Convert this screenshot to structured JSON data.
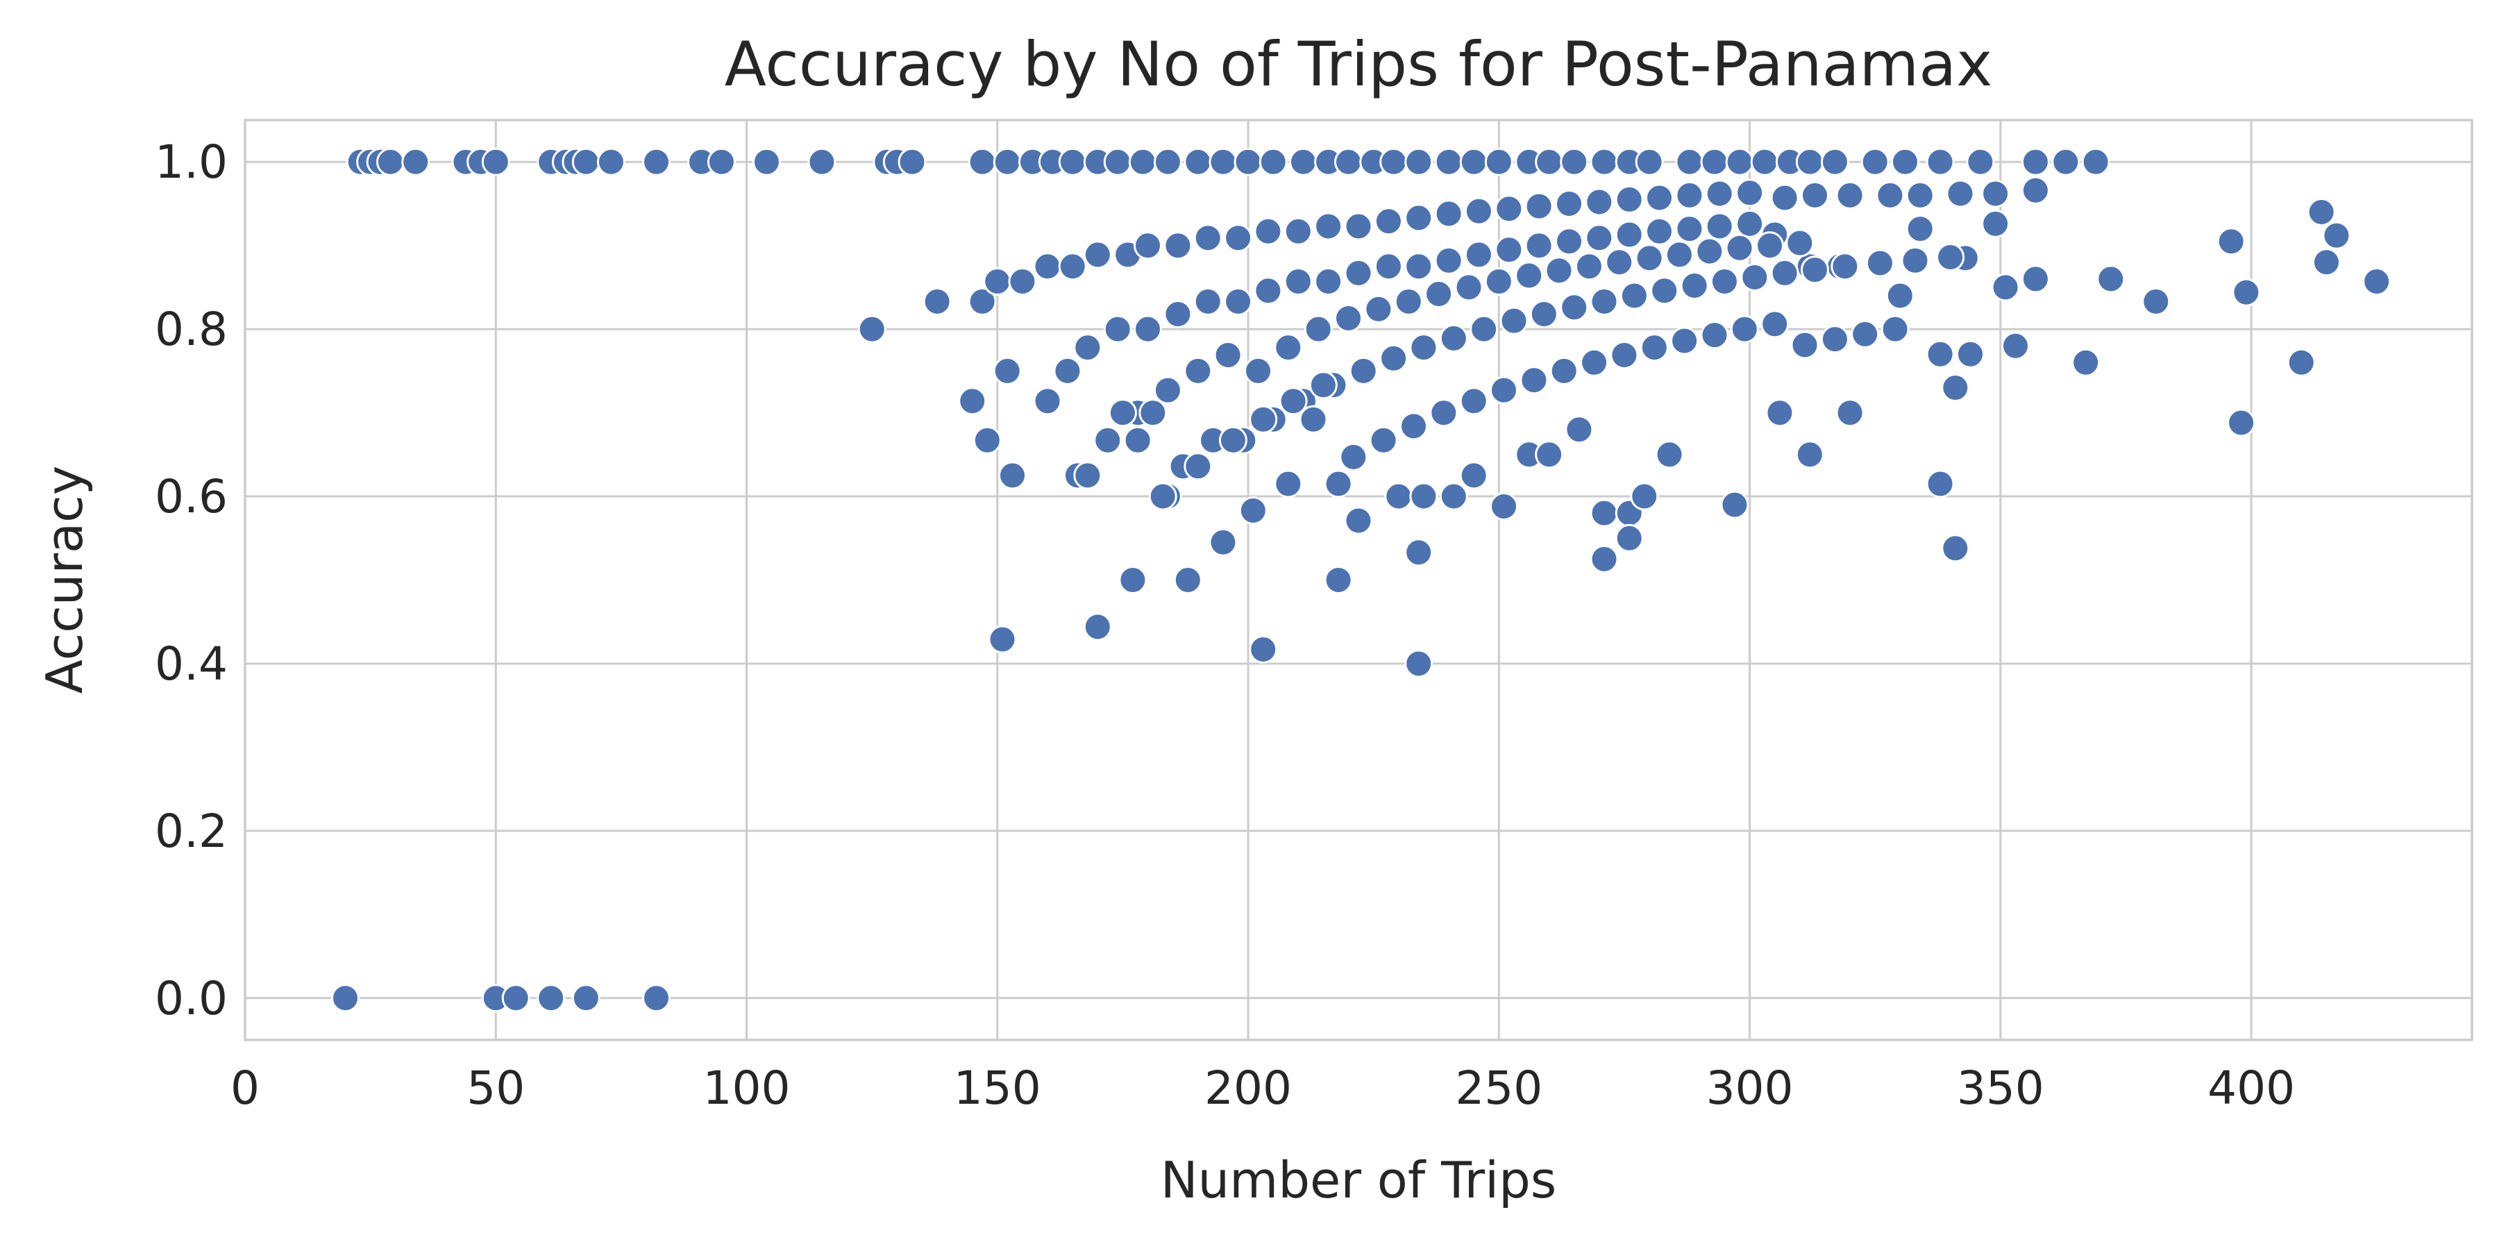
{
  "chart_data": {
    "type": "scatter",
    "title": "Accuracy by No of Trips for Post-Panamax",
    "xlabel": "Number of Trips",
    "ylabel": "Accuracy",
    "xlim": [
      0,
      444
    ],
    "ylim": [
      -0.05,
      1.05
    ],
    "xticks": [
      0,
      50,
      100,
      150,
      200,
      250,
      300,
      350,
      400
    ],
    "yticks": [
      0.0,
      0.2,
      0.4,
      0.6,
      0.8,
      1.0
    ],
    "xtick_labels": [
      "0",
      "50",
      "100",
      "150",
      "200",
      "250",
      "300",
      "350",
      "400"
    ],
    "ytick_labels": [
      "0.0",
      "0.2",
      "0.4",
      "0.6",
      "0.8",
      "1.0"
    ],
    "grid": true,
    "color": "#4c72b0",
    "points": [
      [
        23,
        1.0
      ],
      [
        25,
        1.0
      ],
      [
        27,
        1.0
      ],
      [
        29,
        1.0
      ],
      [
        34,
        1.0
      ],
      [
        44,
        1.0
      ],
      [
        47,
        1.0
      ],
      [
        50,
        1.0
      ],
      [
        61,
        1.0
      ],
      [
        64,
        1.0
      ],
      [
        66,
        1.0
      ],
      [
        68,
        1.0
      ],
      [
        73,
        1.0
      ],
      [
        82,
        1.0
      ],
      [
        91,
        1.0
      ],
      [
        95,
        1.0
      ],
      [
        104,
        1.0
      ],
      [
        115,
        1.0
      ],
      [
        128,
        1.0
      ],
      [
        130,
        1.0
      ],
      [
        133,
        1.0
      ],
      [
        147,
        1.0
      ],
      [
        152,
        1.0
      ],
      [
        157,
        1.0
      ],
      [
        161,
        1.0
      ],
      [
        165,
        1.0
      ],
      [
        170,
        1.0
      ],
      [
        174,
        1.0
      ],
      [
        179,
        1.0
      ],
      [
        184,
        1.0
      ],
      [
        190,
        1.0
      ],
      [
        195,
        1.0
      ],
      [
        200,
        1.0
      ],
      [
        205,
        1.0
      ],
      [
        211,
        1.0
      ],
      [
        216,
        1.0
      ],
      [
        220,
        1.0
      ],
      [
        225,
        1.0
      ],
      [
        229,
        1.0
      ],
      [
        234,
        1.0
      ],
      [
        240,
        1.0
      ],
      [
        245,
        1.0
      ],
      [
        250,
        1.0
      ],
      [
        256,
        1.0
      ],
      [
        260,
        1.0
      ],
      [
        265,
        1.0
      ],
      [
        271,
        1.0
      ],
      [
        276,
        1.0
      ],
      [
        280,
        1.0
      ],
      [
        288,
        1.0
      ],
      [
        293,
        1.0
      ],
      [
        298,
        1.0
      ],
      [
        303,
        1.0
      ],
      [
        308,
        1.0
      ],
      [
        312,
        1.0
      ],
      [
        317,
        1.0
      ],
      [
        325,
        1.0
      ],
      [
        331,
        1.0
      ],
      [
        338,
        1.0
      ],
      [
        346,
        1.0
      ],
      [
        357,
        1.0
      ],
      [
        363,
        1.0
      ],
      [
        369,
        1.0
      ],
      [
        20,
        0.0
      ],
      [
        50,
        0.0
      ],
      [
        54,
        0.0
      ],
      [
        61,
        0.0
      ],
      [
        68,
        0.0
      ],
      [
        82,
        0.0
      ],
      [
        125,
        0.8
      ],
      [
        138,
        0.833
      ],
      [
        147,
        0.833
      ],
      [
        150,
        0.857
      ],
      [
        155,
        0.857
      ],
      [
        160,
        0.875
      ],
      [
        165,
        0.875
      ],
      [
        170,
        0.889
      ],
      [
        176,
        0.889
      ],
      [
        180,
        0.9
      ],
      [
        186,
        0.9
      ],
      [
        192,
        0.909
      ],
      [
        198,
        0.909
      ],
      [
        204,
        0.917
      ],
      [
        210,
        0.917
      ],
      [
        216,
        0.923
      ],
      [
        222,
        0.923
      ],
      [
        228,
        0.929
      ],
      [
        234,
        0.933
      ],
      [
        240,
        0.938
      ],
      [
        246,
        0.941
      ],
      [
        252,
        0.944
      ],
      [
        258,
        0.947
      ],
      [
        264,
        0.95
      ],
      [
        270,
        0.952
      ],
      [
        276,
        0.955
      ],
      [
        282,
        0.957
      ],
      [
        288,
        0.96
      ],
      [
        294,
        0.962
      ],
      [
        300,
        0.963
      ],
      [
        307,
        0.957
      ],
      [
        313,
        0.96
      ],
      [
        320,
        0.96
      ],
      [
        328,
        0.96
      ],
      [
        334,
        0.96
      ],
      [
        342,
        0.962
      ],
      [
        349,
        0.962
      ],
      [
        357,
        0.966
      ],
      [
        152,
        0.75
      ],
      [
        164,
        0.75
      ],
      [
        168,
        0.778
      ],
      [
        174,
        0.8
      ],
      [
        180,
        0.8
      ],
      [
        186,
        0.818
      ],
      [
        192,
        0.833
      ],
      [
        198,
        0.833
      ],
      [
        204,
        0.846
      ],
      [
        210,
        0.857
      ],
      [
        216,
        0.857
      ],
      [
        222,
        0.867
      ],
      [
        228,
        0.875
      ],
      [
        234,
        0.875
      ],
      [
        240,
        0.882
      ],
      [
        246,
        0.889
      ],
      [
        252,
        0.895
      ],
      [
        258,
        0.9
      ],
      [
        264,
        0.905
      ],
      [
        270,
        0.909
      ],
      [
        276,
        0.913
      ],
      [
        282,
        0.917
      ],
      [
        288,
        0.92
      ],
      [
        294,
        0.923
      ],
      [
        300,
        0.926
      ],
      [
        305,
        0.913
      ],
      [
        312,
        0.875
      ],
      [
        318,
        0.875
      ],
      [
        326,
        0.88
      ],
      [
        334,
        0.92
      ],
      [
        343,
        0.885
      ],
      [
        349,
        0.926
      ],
      [
        172,
        0.667
      ],
      [
        178,
        0.7
      ],
      [
        184,
        0.727
      ],
      [
        190,
        0.75
      ],
      [
        196,
        0.769
      ],
      [
        202,
        0.75
      ],
      [
        208,
        0.778
      ],
      [
        214,
        0.8
      ],
      [
        220,
        0.813
      ],
      [
        226,
        0.824
      ],
      [
        232,
        0.833
      ],
      [
        238,
        0.842
      ],
      [
        244,
        0.85
      ],
      [
        250,
        0.857
      ],
      [
        256,
        0.864
      ],
      [
        262,
        0.87
      ],
      [
        268,
        0.875
      ],
      [
        274,
        0.88
      ],
      [
        280,
        0.885
      ],
      [
        286,
        0.889
      ],
      [
        292,
        0.893
      ],
      [
        298,
        0.897
      ],
      [
        304,
        0.9
      ],
      [
        310,
        0.903
      ],
      [
        175,
        0.7
      ],
      [
        181,
        0.7
      ],
      [
        187,
        0.636
      ],
      [
        193,
        0.667
      ],
      [
        199,
        0.667
      ],
      [
        205,
        0.692
      ],
      [
        211,
        0.714
      ],
      [
        217,
        0.733
      ],
      [
        223,
        0.75
      ],
      [
        229,
        0.765
      ],
      [
        235,
        0.778
      ],
      [
        241,
        0.789
      ],
      [
        247,
        0.8
      ],
      [
        253,
        0.81
      ],
      [
        259,
        0.818
      ],
      [
        265,
        0.826
      ],
      [
        271,
        0.833
      ],
      [
        277,
        0.84
      ],
      [
        283,
        0.846
      ],
      [
        289,
        0.852
      ],
      [
        295,
        0.857
      ],
      [
        301,
        0.862
      ],
      [
        307,
        0.867
      ],
      [
        313,
        0.871
      ],
      [
        319,
        0.875
      ],
      [
        326,
        0.879
      ],
      [
        333,
        0.882
      ],
      [
        340,
        0.886
      ],
      [
        160,
        0.714
      ],
      [
        166,
        0.625
      ],
      [
        172,
        0.667
      ],
      [
        178,
        0.667
      ],
      [
        184,
        0.6
      ],
      [
        190,
        0.636
      ],
      [
        197,
        0.667
      ],
      [
        203,
        0.692
      ],
      [
        209,
        0.714
      ],
      [
        215,
        0.733
      ],
      [
        221,
        0.647
      ],
      [
        227,
        0.667
      ],
      [
        233,
        0.684
      ],
      [
        239,
        0.7
      ],
      [
        245,
        0.714
      ],
      [
        251,
        0.727
      ],
      [
        257,
        0.739
      ],
      [
        263,
        0.75
      ],
      [
        269,
        0.76
      ],
      [
        275,
        0.769
      ],
      [
        281,
        0.778
      ],
      [
        287,
        0.786
      ],
      [
        293,
        0.793
      ],
      [
        299,
        0.8
      ],
      [
        305,
        0.806
      ],
      [
        311,
        0.781
      ],
      [
        317,
        0.788
      ],
      [
        323,
        0.794
      ],
      [
        329,
        0.8
      ],
      [
        145,
        0.714
      ],
      [
        148,
        0.667
      ],
      [
        153,
        0.625
      ],
      [
        168,
        0.625
      ],
      [
        183,
        0.6
      ],
      [
        188,
        0.5
      ],
      [
        195,
        0.545
      ],
      [
        201,
        0.583
      ],
      [
        208,
        0.615
      ],
      [
        213,
        0.692
      ],
      [
        218,
        0.615
      ],
      [
        222,
        0.571
      ],
      [
        230,
        0.6
      ],
      [
        235,
        0.6
      ],
      [
        241,
        0.6
      ],
      [
        245,
        0.625
      ],
      [
        251,
        0.588
      ],
      [
        256,
        0.65
      ],
      [
        260,
        0.65
      ],
      [
        266,
        0.68
      ],
      [
        271,
        0.58
      ],
      [
        276,
        0.58
      ],
      [
        279,
        0.6
      ],
      [
        284,
        0.65
      ],
      [
        297,
        0.59
      ],
      [
        306,
        0.7
      ],
      [
        312,
        0.65
      ],
      [
        320,
        0.7
      ],
      [
        330,
        0.84
      ],
      [
        338,
        0.77
      ],
      [
        341,
        0.73
      ],
      [
        344,
        0.77
      ],
      [
        351,
        0.85
      ],
      [
        353,
        0.78
      ],
      [
        357,
        0.86
      ],
      [
        367,
        0.76
      ],
      [
        372,
        0.86
      ],
      [
        381,
        0.833
      ],
      [
        151,
        0.429
      ],
      [
        170,
        0.444
      ],
      [
        177,
        0.5
      ],
      [
        218,
        0.5
      ],
      [
        203,
        0.417
      ],
      [
        234,
        0.4
      ],
      [
        234,
        0.533
      ],
      [
        271,
        0.525
      ],
      [
        276,
        0.55
      ],
      [
        338,
        0.615
      ],
      [
        341,
        0.538
      ],
      [
        396,
        0.905
      ],
      [
        398,
        0.688
      ],
      [
        399,
        0.844
      ],
      [
        410,
        0.76
      ],
      [
        414,
        0.94
      ],
      [
        415,
        0.88
      ],
      [
        417,
        0.912
      ],
      [
        425,
        0.857
      ]
    ]
  }
}
